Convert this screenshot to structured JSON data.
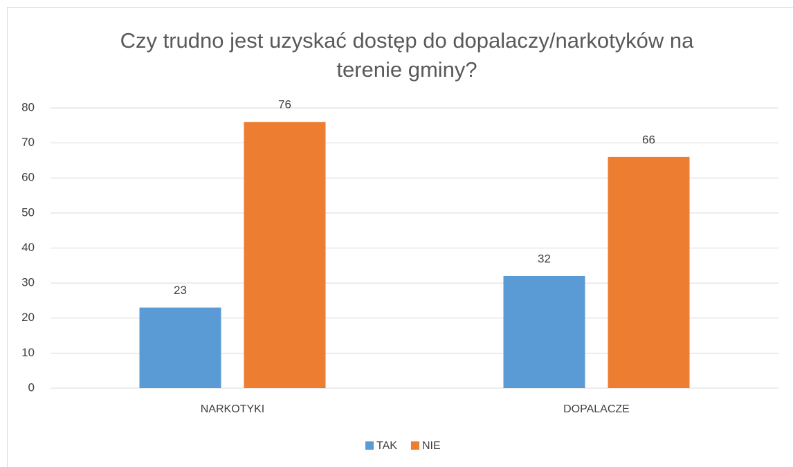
{
  "chart_data": {
    "type": "bar",
    "title": "Czy trudno jest uzyskać dostęp do dopalaczy/narkotyków na terenie gminy?",
    "categories": [
      "NARKOTYKI",
      "DOPALACZE"
    ],
    "series": [
      {
        "name": "TAK",
        "color": "#5b9bd5",
        "values": [
          23,
          32
        ]
      },
      {
        "name": "NIE",
        "color": "#ed7d31",
        "values": [
          76,
          66
        ]
      }
    ],
    "ylim": [
      0,
      80
    ],
    "yticks": [
      0,
      10,
      20,
      30,
      40,
      50,
      60,
      70,
      80
    ],
    "grid": true,
    "legend": "bottom"
  }
}
